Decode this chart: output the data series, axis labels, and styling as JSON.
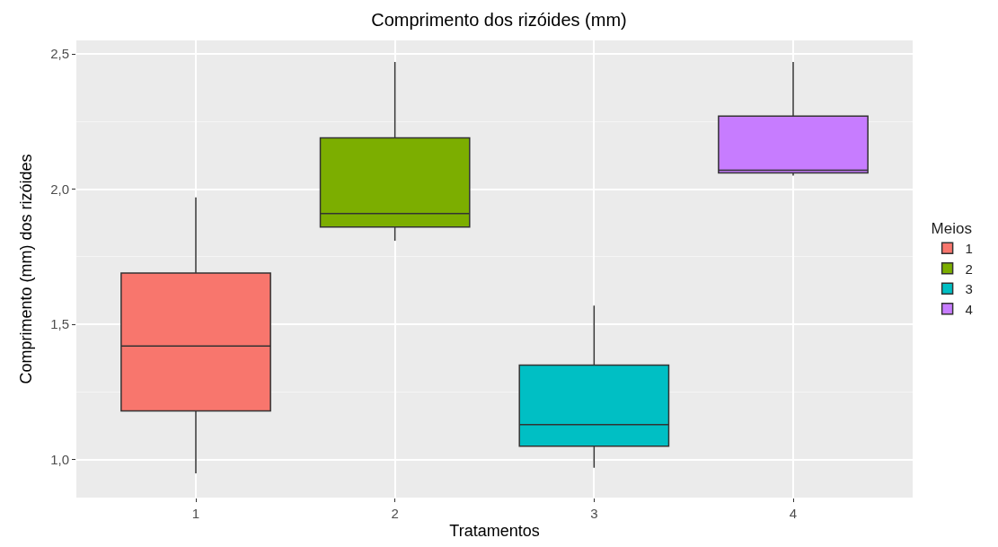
{
  "chart_data": {
    "type": "box",
    "title": "Comprimento dos rizóides (mm)",
    "xlabel": "Tratamentos",
    "ylabel": "Comprimento (mm) dos rizóides",
    "legend_title": "Meios",
    "legend": "right",
    "grid": true,
    "categories": [
      "1",
      "2",
      "3",
      "4"
    ],
    "ylim": [
      0.86,
      2.55
    ],
    "yticks": [
      {
        "value": 1.0,
        "label": "1,0"
      },
      {
        "value": 1.5,
        "label": "1,5"
      },
      {
        "value": 2.0,
        "label": "2,0"
      },
      {
        "value": 2.5,
        "label": "2,5"
      }
    ],
    "series": [
      {
        "name": "1",
        "color": "#f8766d",
        "boxes": [
          {
            "low": 0.95,
            "q1": 1.18,
            "median": 1.42,
            "q3": 1.69,
            "high": 1.97
          },
          null,
          null,
          null
        ]
      },
      {
        "name": "2",
        "color": "#7cae00",
        "boxes": [
          null,
          {
            "low": 1.81,
            "q1": 1.86,
            "median": 1.91,
            "q3": 2.19,
            "high": 2.47
          },
          null,
          null
        ]
      },
      {
        "name": "3",
        "color": "#00bfc4",
        "boxes": [
          null,
          null,
          {
            "low": 0.97,
            "q1": 1.05,
            "median": 1.13,
            "q3": 1.35,
            "high": 1.57
          },
          null
        ]
      },
      {
        "name": "4",
        "color": "#c77cff",
        "boxes": [
          null,
          null,
          null,
          {
            "low": 2.05,
            "q1": 2.06,
            "median": 2.07,
            "q3": 2.27,
            "high": 2.47
          }
        ]
      }
    ]
  }
}
